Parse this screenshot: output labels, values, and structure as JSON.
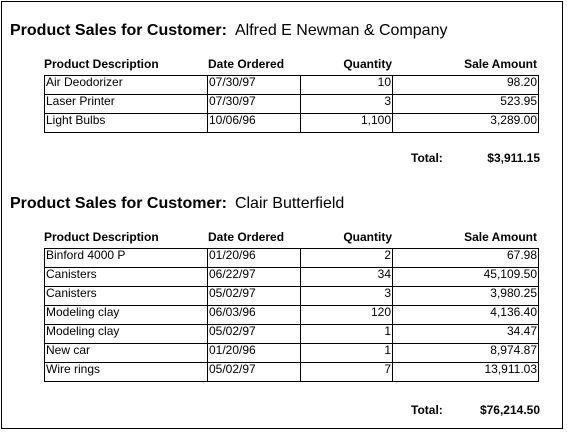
{
  "report": {
    "title_prefix": "Product Sales for Customer:",
    "headers": {
      "description": "Product Description",
      "date": "Date Ordered",
      "quantity": "Quantity",
      "amount": "Sale Amount"
    },
    "total_label": "Total:",
    "customers": [
      {
        "name": "Alfred E Newman & Company",
        "rows": [
          {
            "description": "Air Deodorizer",
            "date": "07/30/97",
            "quantity": "10",
            "amount": "98.20"
          },
          {
            "description": "Laser Printer",
            "date": "07/30/97",
            "quantity": "3",
            "amount": "523.95"
          },
          {
            "description": "Light Bulbs",
            "date": "10/06/96",
            "quantity": "1,100",
            "amount": "3,289.00"
          }
        ],
        "total": "$3,911.15"
      },
      {
        "name": "Clair Butterfield",
        "rows": [
          {
            "description": "Binford 4000 P",
            "date": "01/20/96",
            "quantity": "2",
            "amount": "67.98"
          },
          {
            "description": "Canisters",
            "date": "06/22/97",
            "quantity": "34",
            "amount": "45,109.50"
          },
          {
            "description": "Canisters",
            "date": "05/02/97",
            "quantity": "3",
            "amount": "3,980.25"
          },
          {
            "description": "Modeling clay",
            "date": "06/03/96",
            "quantity": "120",
            "amount": "4,136.40"
          },
          {
            "description": "Modeling clay",
            "date": "05/02/97",
            "quantity": "1",
            "amount": "34.47"
          },
          {
            "description": "New car",
            "date": "01/20/96",
            "quantity": "1",
            "amount": "8,974.87"
          },
          {
            "description": "Wire rings",
            "date": "05/02/97",
            "quantity": "7",
            "amount": "13,911.03"
          }
        ],
        "total": "$76,214.50"
      }
    ]
  }
}
